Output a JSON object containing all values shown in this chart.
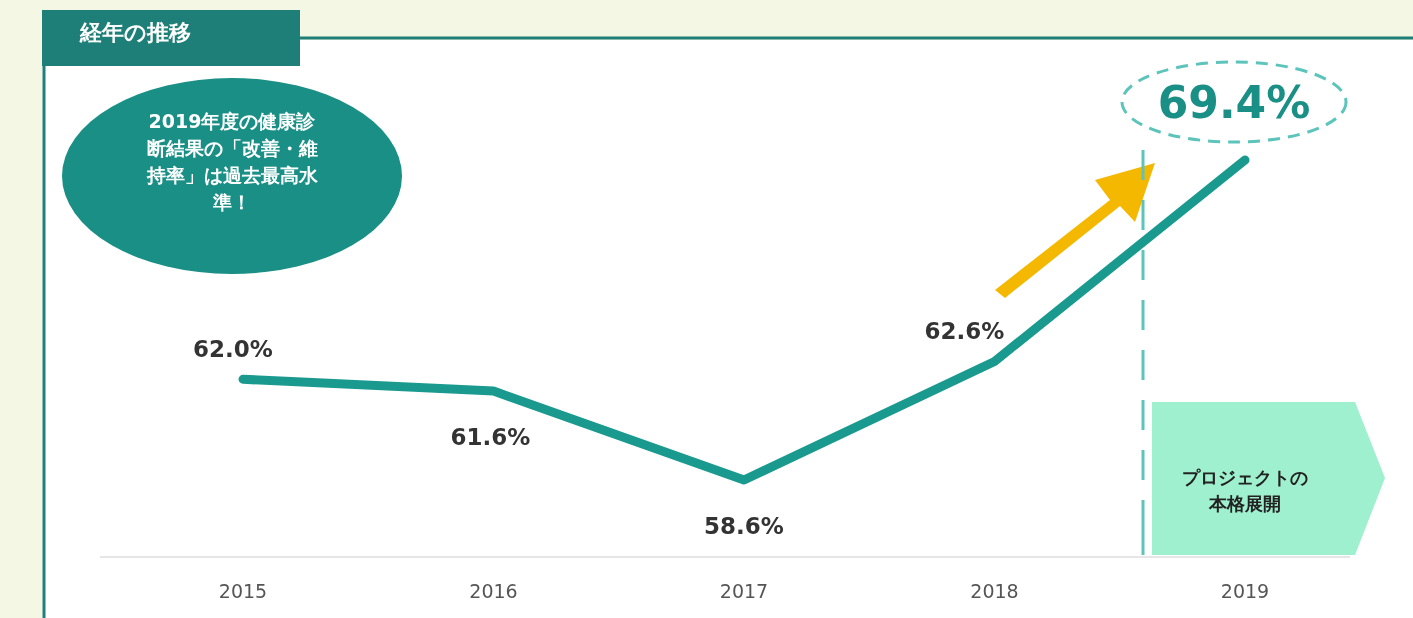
{
  "chart_data": {
    "type": "line",
    "title": "経年の推移",
    "categories": [
      "2015",
      "2016",
      "2017",
      "2018",
      "2019"
    ],
    "series": [
      {
        "color": "#1a9a8f",
        "values": [
          62.0,
          61.6,
          58.6,
          62.6,
          69.4
        ],
        "value_labels": [
          "62.0%",
          "61.6%",
          "58.6%",
          "62.6%",
          "69.4%"
        ]
      }
    ],
    "grid": false,
    "marker": "none",
    "annotations": [
      "2019年度の健康診断結果の「改善・維持率」は過去最高水準！",
      "プロジェクトの本格展開"
    ]
  }
}
